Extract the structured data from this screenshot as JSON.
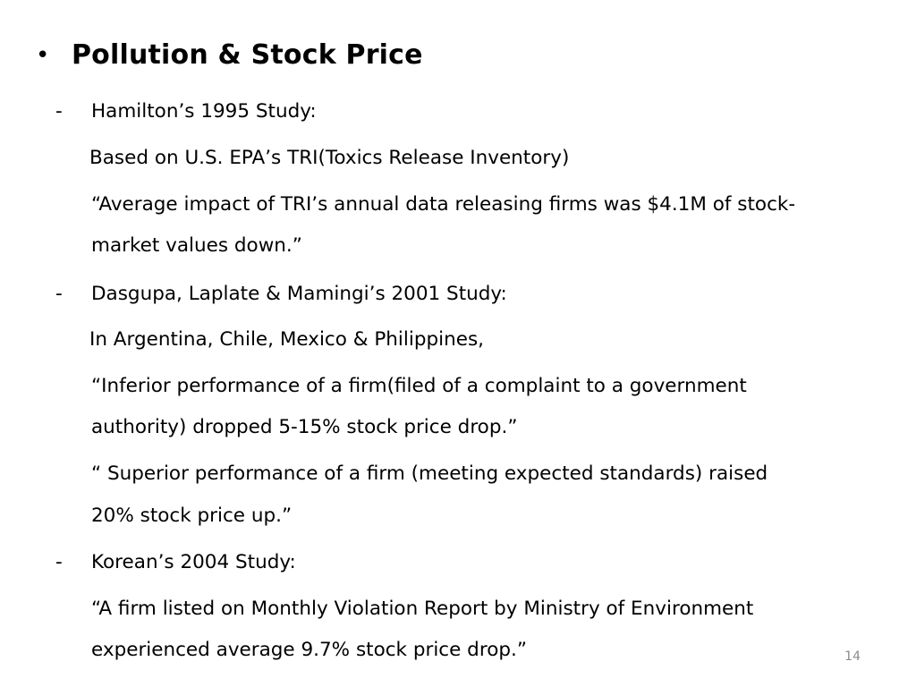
{
  "slide": {
    "title": {
      "bullet": "•",
      "text": "Pollution & Stock Price"
    },
    "studies": [
      {
        "dash": "-",
        "heading": "Hamilton’s 1995 Study:",
        "lines": [
          "Based on U.S. EPA’s TRI(Toxics Release Inventory)",
          "“Average impact of TRI’s annual data releasing firms was $4.1M of stock-",
          "market values down.”"
        ]
      },
      {
        "dash": "-",
        "heading": "Dasgupa, Laplate & Mamingi’s 2001 Study:",
        "lines": [
          "In Argentina, Chile, Mexico & Philippines,",
          "“Inferior performance of a firm(filed of a complaint to a government",
          "authority) dropped 5-15% stock price drop.”",
          "“ Superior performance of a firm (meeting expected standards) raised",
          "20% stock price up.”"
        ]
      },
      {
        "dash": "-",
        "heading": "Korean’s 2004 Study:",
        "lines": [
          "“A firm listed on Monthly Violation Report by Ministry of Environment",
          "experienced average 9.7% stock price drop.”"
        ]
      }
    ],
    "page_number": "14"
  }
}
